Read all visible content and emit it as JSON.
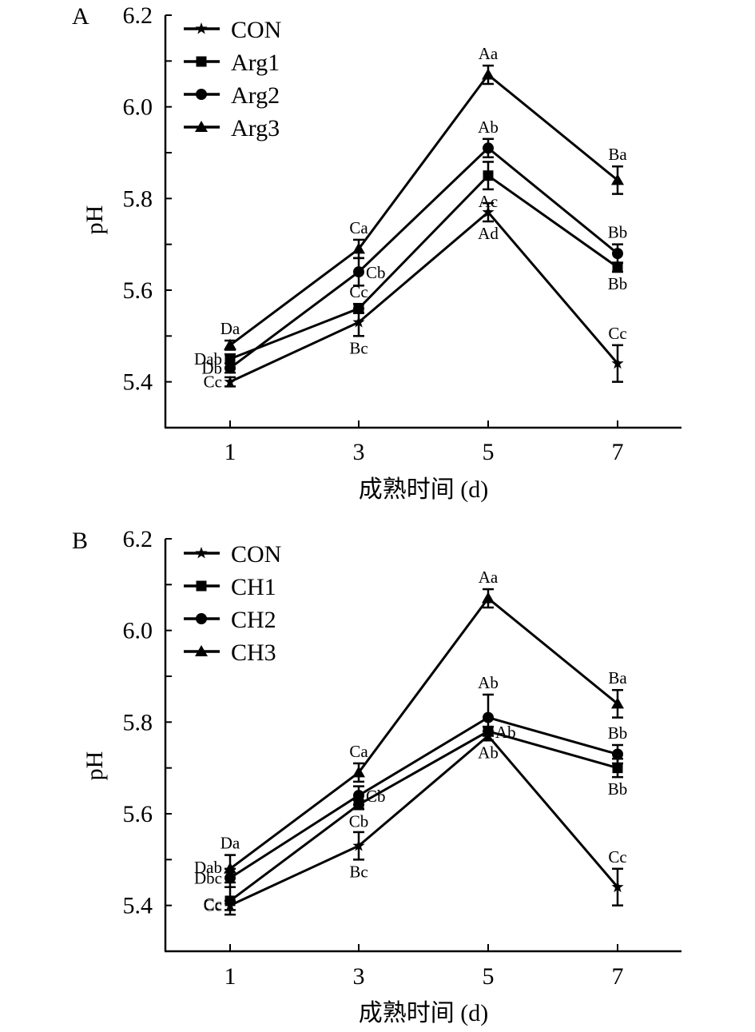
{
  "chart_data": [
    {
      "type": "line",
      "panel": "A",
      "title": "",
      "xlabel": "成熟时间 (d)",
      "ylabel": "pH",
      "x": [
        1,
        3,
        5,
        7
      ],
      "x_tick_labels": [
        "1",
        "3",
        "5",
        "7"
      ],
      "ylim": [
        5.3,
        6.2
      ],
      "y_ticks": [
        5.4,
        5.6,
        5.8,
        6.0,
        6.2
      ],
      "y_tick_labels": [
        "5.4",
        "5.6",
        "5.8",
        "6.0",
        "6.2"
      ],
      "y_minor_step": 0.1,
      "grid": false,
      "legend_position": "top-left",
      "series": [
        {
          "name": "CON",
          "marker": "star",
          "values": [
            5.4,
            5.53,
            5.77,
            5.44
          ],
          "errors": [
            0.01,
            0.03,
            0.02,
            0.04
          ],
          "labels": [
            "Cc",
            "Bc",
            "Ad",
            "Cc"
          ],
          "label_positions": [
            "left",
            "below",
            "below",
            "above"
          ]
        },
        {
          "name": "Arg1",
          "marker": "square",
          "values": [
            5.45,
            5.56,
            5.85,
            5.65
          ],
          "errors": [
            0.01,
            0.01,
            0.03,
            0.01
          ],
          "labels": [
            "Dab",
            "Cc",
            "Ac",
            "Bb"
          ],
          "label_positions": [
            "left",
            "above",
            "below",
            "below"
          ]
        },
        {
          "name": "Arg2",
          "marker": "circle",
          "values": [
            5.43,
            5.64,
            5.91,
            5.68
          ],
          "errors": [
            0.01,
            0.03,
            0.02,
            0.02
          ],
          "labels": [
            "Db",
            "Cb",
            "Ab",
            "Bb"
          ],
          "label_positions": [
            "left",
            "right",
            "above",
            "above"
          ]
        },
        {
          "name": "Arg3",
          "marker": "triangle",
          "values": [
            5.48,
            5.69,
            6.07,
            5.84
          ],
          "errors": [
            0.01,
            0.02,
            0.02,
            0.03
          ],
          "labels": [
            "Da",
            "Ca",
            "Aa",
            "Ba"
          ],
          "label_positions": [
            "above",
            "above",
            "above",
            "above"
          ]
        }
      ]
    },
    {
      "type": "line",
      "panel": "B",
      "title": "",
      "xlabel": "成熟时间 (d)",
      "ylabel": "pH",
      "x": [
        1,
        3,
        5,
        7
      ],
      "x_tick_labels": [
        "1",
        "3",
        "5",
        "7"
      ],
      "ylim": [
        5.3,
        6.2
      ],
      "y_ticks": [
        5.4,
        5.6,
        5.8,
        6.0,
        6.2
      ],
      "y_tick_labels": [
        "5.4",
        "5.6",
        "5.8",
        "6.0",
        "6.2"
      ],
      "y_minor_step": 0.1,
      "grid": false,
      "legend_position": "top-left",
      "series": [
        {
          "name": "CON",
          "marker": "star",
          "values": [
            5.4,
            5.53,
            5.77,
            5.44
          ],
          "errors": [
            0.01,
            0.03,
            0.01,
            0.04
          ],
          "labels": [
            "Cc",
            "Bc",
            "Ab",
            "Cc"
          ],
          "label_positions": [
            "left",
            "below",
            "below",
            "above"
          ]
        },
        {
          "name": "CH1",
          "marker": "square",
          "values": [
            5.41,
            5.62,
            5.78,
            5.7
          ],
          "errors": [
            0.03,
            0.01,
            0.01,
            0.02
          ],
          "labels": [
            "Cc",
            "Cb",
            "Ab",
            "Bb"
          ],
          "label_positions": [
            "none",
            "below",
            "right",
            "below"
          ]
        },
        {
          "name": "CH2",
          "marker": "circle",
          "values": [
            5.46,
            5.64,
            5.81,
            5.73
          ],
          "errors": [
            0.02,
            0.02,
            0.05,
            0.02
          ],
          "labels": [
            "Dbc",
            "Cb",
            "Ab",
            "Bb"
          ],
          "label_positions": [
            "left",
            "right",
            "above",
            "above"
          ]
        },
        {
          "name": "CH3",
          "marker": "triangle",
          "values": [
            5.48,
            5.69,
            6.07,
            5.84
          ],
          "errors": [
            0.03,
            0.02,
            0.02,
            0.03
          ],
          "labels": [
            "Da",
            "Ca",
            "Aa",
            "Ba"
          ],
          "label_positions": [
            "above",
            "above",
            "above",
            "above"
          ]
        }
      ],
      "extra_labels_note": "Day 1 shows stacked labels Da / Dab / Dbc / Cc"
    }
  ],
  "panels": [
    {
      "letter": "A",
      "legend": [
        "CON",
        "Arg1",
        "Arg2",
        "Arg3"
      ],
      "day1_labels": [
        "Da",
        "Dab",
        "Db",
        "Cc"
      ]
    },
    {
      "letter": "B",
      "legend": [
        "CON",
        "CH1",
        "CH2",
        "CH3"
      ],
      "day1_labels": [
        "Da",
        "Dab",
        "Dbc",
        "Cc"
      ]
    }
  ]
}
